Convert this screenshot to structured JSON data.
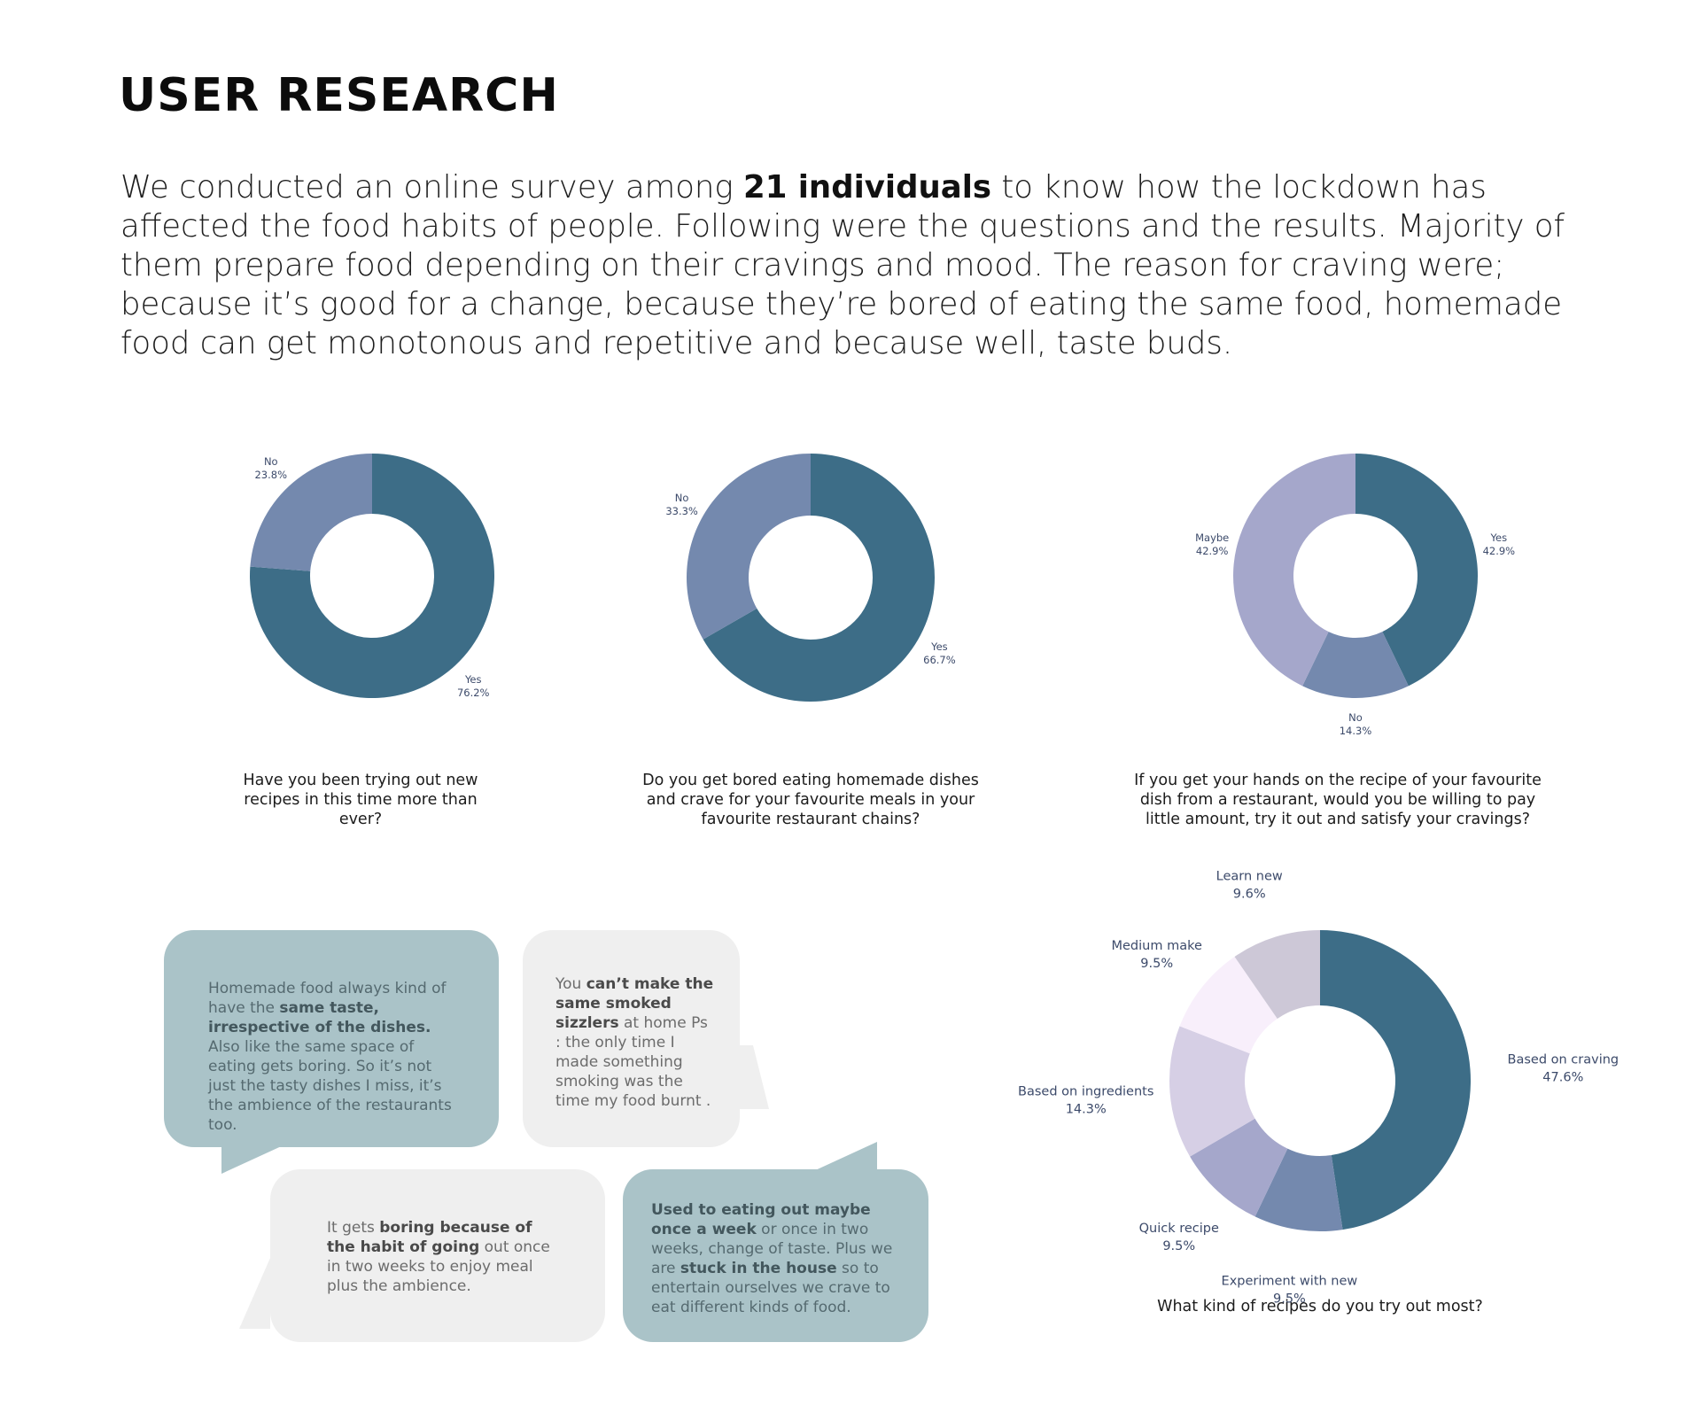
{
  "page": {
    "title": "USER RESEARCH",
    "intro_before": "We conducted an online survey among ",
    "intro_bold": "21 individuals",
    "intro_after": " to know how the lockdown has affected the food habits of people. Following were the questions and the results. Majority of them prepare food depending on their cravings and mood. The reason for craving were; because it’s good for a change, because they’re bored of eating the same food, homemade food can get monotonous and repetitive and because well, taste buds."
  },
  "chart_data": [
    {
      "type": "pie",
      "title": "Have you been trying out new recipes in this time more than ever?",
      "slices": [
        {
          "label": "Yes",
          "value": 76.2,
          "display": "76.2%",
          "color": "#3d6d87"
        },
        {
          "label": "No",
          "value": 23.8,
          "display": "23.8%",
          "color": "#7489ae"
        }
      ]
    },
    {
      "type": "pie",
      "title": "Do you get bored eating homemade dishes and crave for your favourite meals in your favourite restaurant chains?",
      "slices": [
        {
          "label": "Yes",
          "value": 66.7,
          "display": "66.7%",
          "color": "#3d6d87"
        },
        {
          "label": "No",
          "value": 33.3,
          "display": "33.3%",
          "color": "#7489ae"
        }
      ]
    },
    {
      "type": "pie",
      "title": "If you get your hands on the recipe of your favourite dish from a restaurant, would you be willing to pay little amount, try it out and satisfy your cravings?",
      "slices": [
        {
          "label": "Yes",
          "value": 42.9,
          "display": "42.9%",
          "color": "#3d6d87"
        },
        {
          "label": "No",
          "value": 14.3,
          "display": "14.3%",
          "color": "#7489ae"
        },
        {
          "label": "Maybe",
          "value": 42.9,
          "display": "42.9%",
          "color": "#a5a7cb"
        }
      ]
    },
    {
      "type": "pie",
      "title": "What kind of recipes do you try out most?",
      "slices": [
        {
          "label": "Based on craving",
          "value": 47.6,
          "display": "47.6%",
          "color": "#3d6d87"
        },
        {
          "label": "Experiment with new",
          "value": 9.5,
          "display": "9.5%",
          "color": "#7489ae"
        },
        {
          "label": "Quick recipe",
          "value": 9.5,
          "display": "9.5%",
          "color": "#a5a7cb"
        },
        {
          "label": "Based on ingredients",
          "value": 14.3,
          "display": "14.3%",
          "color": "#d6cfe5"
        },
        {
          "label": "Medium make",
          "value": 9.5,
          "display": "9.5%",
          "color": "#f8effb"
        },
        {
          "label": "Learn new",
          "value": 9.6,
          "display": "9.6%",
          "color": "#cdc8d7"
        }
      ]
    }
  ],
  "quotes": [
    {
      "id": "q1",
      "parts": [
        {
          "text": "Homemade food always kind of have the "
        },
        {
          "text": "same taste, irrespective of the dishes.",
          "bold": true
        },
        {
          "text": " Also like the same space of eating gets boring. So it’s not just the tasty dishes I miss, it’s the ambience of the restaurants too."
        }
      ]
    },
    {
      "id": "q2",
      "parts": [
        {
          "text": "You "
        },
        {
          "text": "can’t make the same smoked sizzlers",
          "bold": true
        },
        {
          "text": " at home Ps : the only time I made something smoking was the time my food burnt ."
        }
      ]
    },
    {
      "id": "q3",
      "parts": [
        {
          "text": "It gets "
        },
        {
          "text": "boring because of the habit of going",
          "bold": true
        },
        {
          "text": " out once in two weeks to enjoy meal plus the ambience."
        }
      ]
    },
    {
      "id": "q4",
      "parts": [
        {
          "text": "Used to eating out maybe once a week",
          "bold": true
        },
        {
          "text": " or once in two weeks, change of taste. Plus we are "
        },
        {
          "text": "stuck in the house",
          "bold": true
        },
        {
          "text": " so to entertain ourselves we crave to eat different kinds of food."
        }
      ]
    }
  ]
}
